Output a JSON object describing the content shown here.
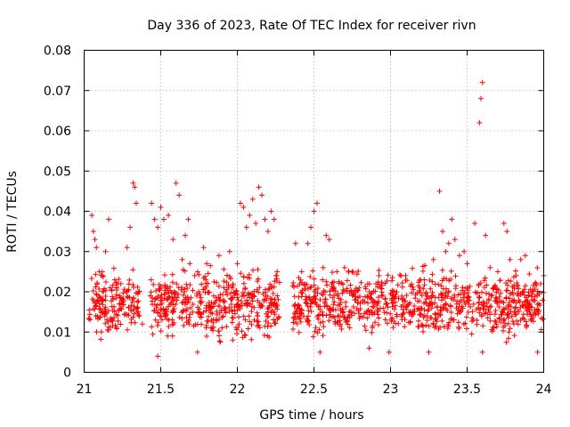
{
  "chart_data": {
    "type": "scatter",
    "title": "Day 336 of 2023, Rate Of TEC Index for receiver rivn",
    "xlabel": "GPS time / hours",
    "ylabel": "ROTI / TECUs",
    "xlim": [
      21,
      24
    ],
    "ylim": [
      0,
      0.08
    ],
    "xticks": [
      21,
      21.5,
      22,
      22.5,
      23,
      23.5,
      24
    ],
    "xtick_labels": [
      "21",
      "21.5",
      "22",
      "22.5",
      "23",
      "23.5",
      "24"
    ],
    "yticks": [
      0,
      0.01,
      0.02,
      0.03,
      0.04,
      0.05,
      0.06,
      0.07,
      0.08
    ],
    "ytick_labels": [
      "0",
      "0.01",
      "0.02",
      "0.03",
      "0.04",
      "0.05",
      "0.06",
      "0.07",
      "0.08"
    ],
    "grid": true,
    "marker": "+",
    "marker_color": "#ff0000",
    "series": [
      {
        "name": "ROTI",
        "points": [
          [
            21.05,
            0.039
          ],
          [
            21.06,
            0.035
          ],
          [
            21.07,
            0.033
          ],
          [
            21.08,
            0.031
          ],
          [
            21.1,
            0.025
          ],
          [
            21.12,
            0.024
          ],
          [
            21.14,
            0.03
          ],
          [
            21.16,
            0.038
          ],
          [
            21.2,
            0.023
          ],
          [
            21.24,
            0.022
          ],
          [
            21.28,
            0.031
          ],
          [
            21.3,
            0.036
          ],
          [
            21.32,
            0.047
          ],
          [
            21.33,
            0.046
          ],
          [
            21.34,
            0.042
          ],
          [
            21.36,
            0.014
          ],
          [
            21.38,
            0.012
          ],
          [
            21.44,
            0.042
          ],
          [
            21.46,
            0.038
          ],
          [
            21.48,
            0.036
          ],
          [
            21.5,
            0.041
          ],
          [
            21.52,
            0.038
          ],
          [
            21.55,
            0.039
          ],
          [
            21.58,
            0.033
          ],
          [
            21.6,
            0.047
          ],
          [
            21.62,
            0.044
          ],
          [
            21.66,
            0.034
          ],
          [
            21.68,
            0.038
          ],
          [
            21.64,
            0.028
          ],
          [
            21.69,
            0.027
          ],
          [
            21.78,
            0.031
          ],
          [
            21.8,
            0.027
          ],
          [
            21.88,
            0.029
          ],
          [
            21.95,
            0.03
          ],
          [
            22.0,
            0.027
          ],
          [
            22.02,
            0.042
          ],
          [
            22.04,
            0.041
          ],
          [
            22.06,
            0.036
          ],
          [
            22.08,
            0.039
          ],
          [
            22.1,
            0.043
          ],
          [
            22.12,
            0.037
          ],
          [
            22.14,
            0.046
          ],
          [
            22.16,
            0.044
          ],
          [
            22.18,
            0.038
          ],
          [
            22.2,
            0.035
          ],
          [
            22.22,
            0.04
          ],
          [
            22.24,
            0.038
          ],
          [
            22.26,
            0.025
          ],
          [
            22.38,
            0.032
          ],
          [
            22.42,
            0.025
          ],
          [
            22.46,
            0.032
          ],
          [
            22.48,
            0.036
          ],
          [
            22.5,
            0.04
          ],
          [
            22.52,
            0.042
          ],
          [
            22.58,
            0.034
          ],
          [
            22.6,
            0.033
          ],
          [
            22.56,
            0.026
          ],
          [
            22.65,
            0.025
          ],
          [
            22.7,
            0.026
          ],
          [
            22.75,
            0.025
          ],
          [
            23.22,
            0.023
          ],
          [
            23.28,
            0.028
          ],
          [
            23.32,
            0.045
          ],
          [
            23.34,
            0.035
          ],
          [
            23.36,
            0.03
          ],
          [
            23.38,
            0.032
          ],
          [
            23.4,
            0.038
          ],
          [
            23.42,
            0.033
          ],
          [
            23.45,
            0.029
          ],
          [
            23.48,
            0.03
          ],
          [
            23.5,
            0.027
          ],
          [
            23.55,
            0.037
          ],
          [
            23.58,
            0.062
          ],
          [
            23.59,
            0.068
          ],
          [
            23.6,
            0.072
          ],
          [
            23.62,
            0.034
          ],
          [
            23.65,
            0.026
          ],
          [
            23.7,
            0.025
          ],
          [
            23.74,
            0.037
          ],
          [
            23.76,
            0.035
          ],
          [
            23.78,
            0.028
          ],
          [
            23.82,
            0.024
          ],
          [
            23.85,
            0.028
          ],
          [
            23.88,
            0.029
          ],
          [
            23.95,
            0.022
          ],
          [
            23.98,
            0.022
          ],
          [
            24.0,
            0.024
          ],
          [
            21.48,
            0.004
          ],
          [
            21.74,
            0.005
          ],
          [
            21.97,
            0.008
          ],
          [
            22.54,
            0.005
          ],
          [
            22.86,
            0.006
          ],
          [
            22.99,
            0.005
          ],
          [
            23.25,
            0.005
          ],
          [
            23.6,
            0.005
          ],
          [
            23.96,
            0.005
          ]
        ]
      }
    ]
  }
}
